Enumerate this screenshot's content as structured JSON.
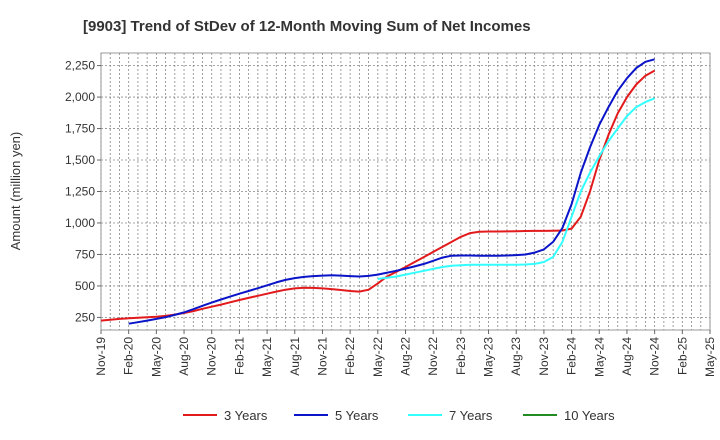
{
  "chart_data": {
    "type": "line",
    "title": "[9903]  Trend of StDev of 12-Month Moving Sum of Net Incomes",
    "xlabel": "",
    "ylabel": "Amount (million yen)",
    "x_tick_labels": [
      "Nov-19",
      "Feb-20",
      "May-20",
      "Aug-20",
      "Nov-20",
      "Feb-21",
      "May-21",
      "Aug-21",
      "Nov-21",
      "Feb-22",
      "May-22",
      "Aug-22",
      "Nov-22",
      "Feb-23",
      "May-23",
      "Aug-23",
      "Nov-23",
      "Feb-24",
      "May-24",
      "Aug-24",
      "Nov-24",
      "Feb-25",
      "May-25"
    ],
    "y_ticks": [
      250,
      500,
      750,
      1000,
      1250,
      1500,
      1750,
      2000,
      2250
    ],
    "y_tick_labels": [
      "250",
      "500",
      "750",
      "1,000",
      "1,250",
      "1,500",
      "1,750",
      "2,000",
      "2,250"
    ],
    "ylim": [
      150,
      2350
    ],
    "grid": true,
    "legend_position": "bottom",
    "x_months": [
      "2019-11",
      "2019-12",
      "2020-01",
      "2020-02",
      "2020-03",
      "2020-04",
      "2020-05",
      "2020-06",
      "2020-07",
      "2020-08",
      "2020-09",
      "2020-10",
      "2020-11",
      "2020-12",
      "2021-01",
      "2021-02",
      "2021-03",
      "2021-04",
      "2021-05",
      "2021-06",
      "2021-07",
      "2021-08",
      "2021-09",
      "2021-10",
      "2021-11",
      "2021-12",
      "2022-01",
      "2022-02",
      "2022-03",
      "2022-04",
      "2022-05",
      "2022-06",
      "2022-07",
      "2022-08",
      "2022-09",
      "2022-10",
      "2022-11",
      "2022-12",
      "2023-01",
      "2023-02",
      "2023-03",
      "2023-04",
      "2023-05",
      "2023-06",
      "2023-07",
      "2023-08",
      "2023-09",
      "2023-10",
      "2023-11",
      "2023-12",
      "2024-01",
      "2024-02",
      "2024-03",
      "2024-04",
      "2024-05",
      "2024-06",
      "2024-07",
      "2024-08",
      "2024-09",
      "2024-10",
      "2024-11"
    ],
    "series": [
      {
        "name": "3 Years",
        "color": "#e31a1c",
        "values": [
          225,
          232,
          238,
          243,
          248,
          252,
          255,
          262,
          272,
          285,
          300,
          318,
          335,
          352,
          370,
          388,
          405,
          422,
          438,
          455,
          470,
          480,
          485,
          484,
          480,
          475,
          468,
          460,
          455,
          470,
          520,
          575,
          612,
          650,
          690,
          730,
          770,
          810,
          850,
          890,
          920,
          930,
          932,
          932,
          933,
          935,
          936,
          937,
          937,
          938,
          940,
          955,
          1050,
          1250,
          1500,
          1700,
          1870,
          2000,
          2100,
          2170,
          2210
        ]
      },
      {
        "name": "5 Years",
        "color": "#0a14c8",
        "values": [
          null,
          null,
          null,
          200,
          212,
          225,
          238,
          252,
          270,
          290,
          315,
          342,
          368,
          392,
          415,
          438,
          460,
          482,
          505,
          528,
          548,
          562,
          572,
          578,
          582,
          585,
          582,
          578,
          575,
          580,
          590,
          605,
          620,
          638,
          655,
          675,
          700,
          725,
          740,
          742,
          742,
          740,
          740,
          740,
          742,
          745,
          750,
          765,
          790,
          850,
          960,
          1150,
          1400,
          1600,
          1780,
          1920,
          2050,
          2150,
          2230,
          2280,
          2300
        ]
      },
      {
        "name": "7 Years",
        "color": "#33ffff",
        "values": [
          null,
          null,
          null,
          null,
          null,
          null,
          null,
          null,
          null,
          null,
          null,
          null,
          null,
          null,
          null,
          null,
          null,
          null,
          null,
          null,
          null,
          null,
          null,
          null,
          null,
          null,
          null,
          null,
          null,
          null,
          555,
          565,
          575,
          590,
          605,
          620,
          635,
          650,
          660,
          665,
          668,
          668,
          668,
          668,
          668,
          668,
          670,
          675,
          690,
          730,
          850,
          1050,
          1250,
          1400,
          1530,
          1650,
          1750,
          1850,
          1920,
          1960,
          1990
        ]
      },
      {
        "name": "10 Years",
        "color": "#228b22",
        "values": []
      }
    ]
  }
}
